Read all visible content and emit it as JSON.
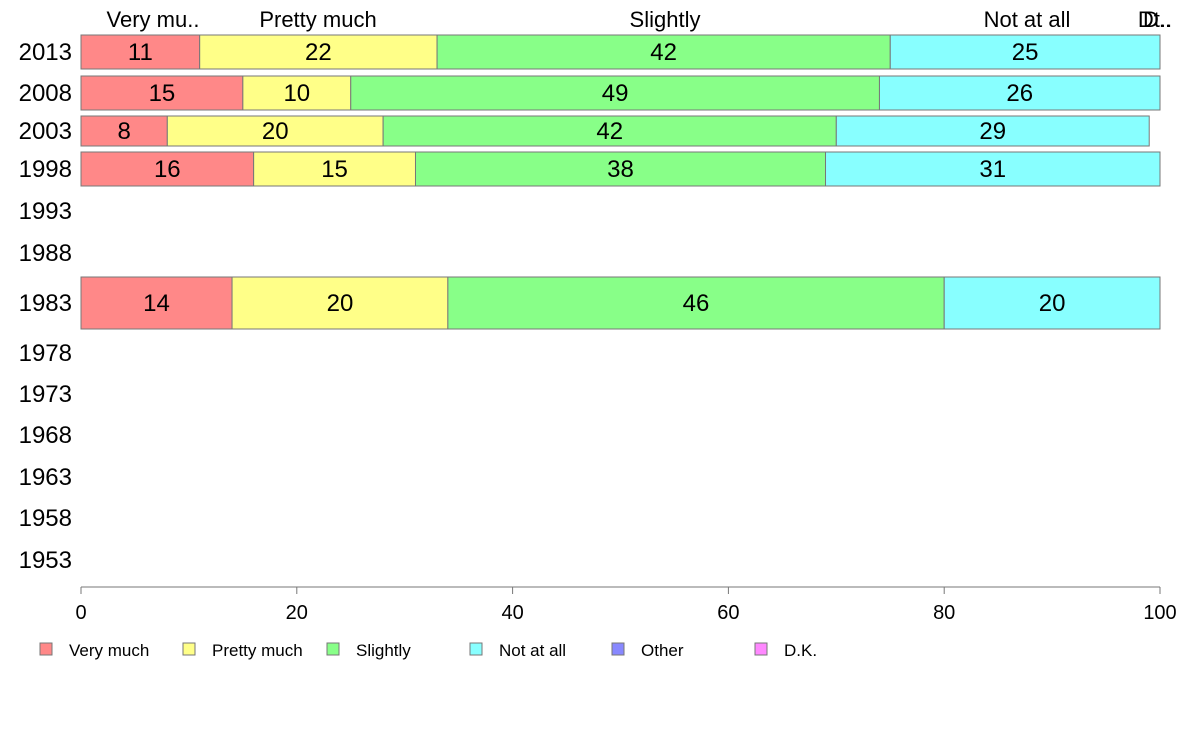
{
  "chart_data": {
    "type": "bar",
    "orientation": "horizontal",
    "stacked": true,
    "title": "",
    "xlabel": "",
    "ylabel": "",
    "xlim": [
      0,
      100
    ],
    "x_ticks": [
      "0",
      "20",
      "40",
      "60",
      "80",
      "100"
    ],
    "grid": false,
    "legend_position": "bottom",
    "categories": [
      "2013",
      "2008",
      "2003",
      "1998",
      "1993",
      "1988",
      "1983",
      "1978",
      "1973",
      "1968",
      "1963",
      "1958",
      "1953"
    ],
    "top_labels": [
      "Very mu..",
      "Pretty much",
      "Slightly",
      "Not at all",
      "Dt..",
      "D.."
    ],
    "series": [
      {
        "name": "Very much",
        "color": "#ff8888",
        "values": [
          11,
          15,
          8,
          16,
          null,
          null,
          14,
          null,
          null,
          null,
          null,
          null,
          null
        ]
      },
      {
        "name": "Pretty much",
        "color": "#ffff88",
        "values": [
          22,
          10,
          20,
          15,
          null,
          null,
          20,
          null,
          null,
          null,
          null,
          null,
          null
        ]
      },
      {
        "name": "Slightly",
        "color": "#88ff88",
        "values": [
          42,
          49,
          42,
          38,
          null,
          null,
          46,
          null,
          null,
          null,
          null,
          null,
          null
        ]
      },
      {
        "name": "Not at all",
        "color": "#88ffff",
        "values": [
          25,
          26,
          29,
          31,
          null,
          null,
          20,
          null,
          null,
          null,
          null,
          null,
          null
        ]
      },
      {
        "name": "Other",
        "color": "#8888ff",
        "values": [
          null,
          null,
          null,
          null,
          null,
          null,
          null,
          null,
          null,
          null,
          null,
          null,
          null
        ]
      },
      {
        "name": "D.K.",
        "color": "#ff88ff",
        "values": [
          null,
          null,
          null,
          null,
          null,
          null,
          null,
          null,
          null,
          null,
          null,
          null,
          null
        ]
      }
    ]
  }
}
